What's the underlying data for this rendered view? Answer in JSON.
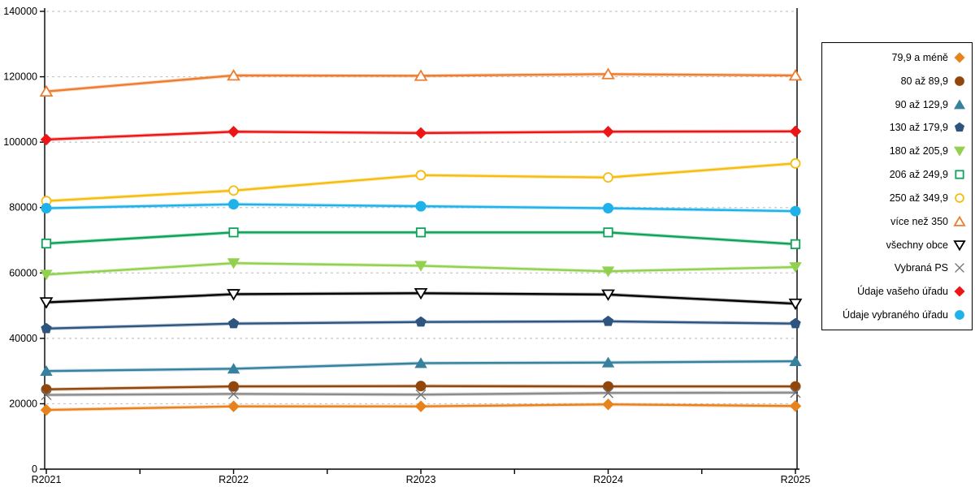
{
  "plot": {
    "background": "#FFFFFF",
    "grid_color": "#C6C6C6",
    "axis_color": "#000000",
    "grid_style": "dashed"
  },
  "axes": {
    "x_labels": [
      "R2021",
      "R2022",
      "R2023",
      "R2024",
      "R2025"
    ],
    "y_labels": [
      "0",
      "20000",
      "40000",
      "60000",
      "80000",
      "100000",
      "120000",
      "140000"
    ]
  },
  "chart_data": {
    "type": "line",
    "title": "",
    "xlabel": "",
    "ylabel": "",
    "categories": [
      "R2021",
      "R2022",
      "R2023",
      "R2024",
      "R2025"
    ],
    "ylim": [
      0,
      140000
    ],
    "ytick_step": 20000,
    "yticks": [
      0,
      20000,
      40000,
      60000,
      80000,
      100000,
      120000,
      140000
    ],
    "grid": "horizontal dashed",
    "legend_position": "right",
    "series": [
      {
        "name": "79,9 a méně",
        "marker": "diamond",
        "open": false,
        "color": "#E8821C",
        "values": [
          18100,
          19200,
          19200,
          19800,
          19300
        ]
      },
      {
        "name": "80 až 89,9",
        "marker": "circle",
        "open": false,
        "color": "#91470C",
        "values": [
          24400,
          25300,
          25400,
          25300,
          25300
        ]
      },
      {
        "name": "90 až 129,9",
        "marker": "triangle-up",
        "open": false,
        "color": "#36829E",
        "values": [
          30000,
          30700,
          32400,
          32600,
          33000
        ]
      },
      {
        "name": "130 až 179,9",
        "marker": "pentagon",
        "open": false,
        "color": "#2D5580",
        "values": [
          43000,
          44500,
          45000,
          45200,
          44500
        ]
      },
      {
        "name": "180 až 205,9",
        "marker": "triangle-down",
        "open": false,
        "color": "#92D050",
        "values": [
          59500,
          63000,
          62200,
          60500,
          61800
        ]
      },
      {
        "name": "206 až 249,9",
        "marker": "square",
        "open": true,
        "color": "#0FA35A",
        "values": [
          69000,
          72400,
          72400,
          72400,
          68800
        ]
      },
      {
        "name": "250 až 349,9",
        "marker": "circle",
        "open": true,
        "color": "#F5BD11",
        "values": [
          82000,
          85200,
          89900,
          89200,
          93500
        ]
      },
      {
        "name": "více než 350",
        "marker": "triangle-up",
        "open": true,
        "color": "#ED7D31",
        "values": [
          115500,
          120400,
          120300,
          120800,
          120400
        ]
      },
      {
        "name": "všechny obce",
        "marker": "triangle-down",
        "open": true,
        "color": "#000000",
        "values": [
          51000,
          53500,
          53800,
          53400,
          50600
        ]
      },
      {
        "name": "Vybraná PS",
        "marker": "x",
        "open": true,
        "color": "#8C8C8C",
        "values": [
          22700,
          23000,
          22800,
          23300,
          23400
        ]
      },
      {
        "name": "Údaje vašeho úřadu",
        "marker": "diamond",
        "open": false,
        "color": "#ED1515",
        "values": [
          100800,
          103200,
          102800,
          103200,
          103300
        ]
      },
      {
        "name": "Údaje vybraného úřadu",
        "marker": "circle",
        "open": false,
        "color": "#1FB1EA",
        "values": [
          79800,
          81000,
          80400,
          79800,
          78900
        ]
      }
    ]
  }
}
